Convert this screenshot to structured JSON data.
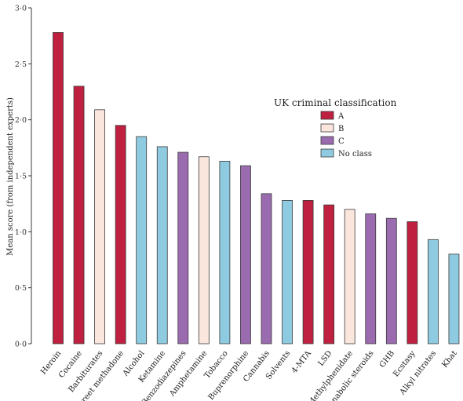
{
  "chart_data": {
    "type": "bar",
    "title": "",
    "xlabel": "",
    "ylabel": "Mean score (from independent experts)",
    "ylim": [
      0,
      3
    ],
    "yticks": [
      "0·0",
      "0·5",
      "1·0",
      "1·5",
      "2·0",
      "2·5",
      "3·0"
    ],
    "ytick_values": [
      0,
      0.5,
      1.0,
      1.5,
      2.0,
      2.5,
      3.0
    ],
    "grid": false,
    "legend": {
      "title": "UK criminal classification",
      "placement": "upper-right",
      "entries": [
        {
          "key": "A",
          "label": "A",
          "color": "#c0203f"
        },
        {
          "key": "B",
          "label": "B",
          "color": "#fbe6de"
        },
        {
          "key": "C",
          "label": "C",
          "color": "#9b6bb0"
        },
        {
          "key": "none",
          "label": "No class",
          "color": "#8fcbe0"
        }
      ]
    },
    "categories": [
      "Heroin",
      "Cocaine",
      "Barbiturates",
      "Street methadone",
      "Alcohol",
      "Ketamine",
      "Benzodiazepines",
      "Amphetamine",
      "Tobacco",
      "Buprenorphine",
      "Cannabis",
      "Solvents",
      "4-MTA",
      "LSD",
      "Methylphenidate",
      "Anabolic steroids",
      "GHB",
      "Ecstasy",
      "Alkyl nitrates",
      "Khat"
    ],
    "values": [
      2.78,
      2.3,
      2.09,
      1.95,
      1.85,
      1.76,
      1.71,
      1.67,
      1.63,
      1.59,
      1.34,
      1.28,
      1.28,
      1.24,
      1.2,
      1.16,
      1.12,
      1.09,
      0.93,
      0.8
    ],
    "classes": [
      "A",
      "A",
      "B",
      "A",
      "none",
      "none",
      "C",
      "B",
      "none",
      "C",
      "C",
      "none",
      "A",
      "A",
      "B",
      "C",
      "C",
      "A",
      "none",
      "none"
    ]
  }
}
